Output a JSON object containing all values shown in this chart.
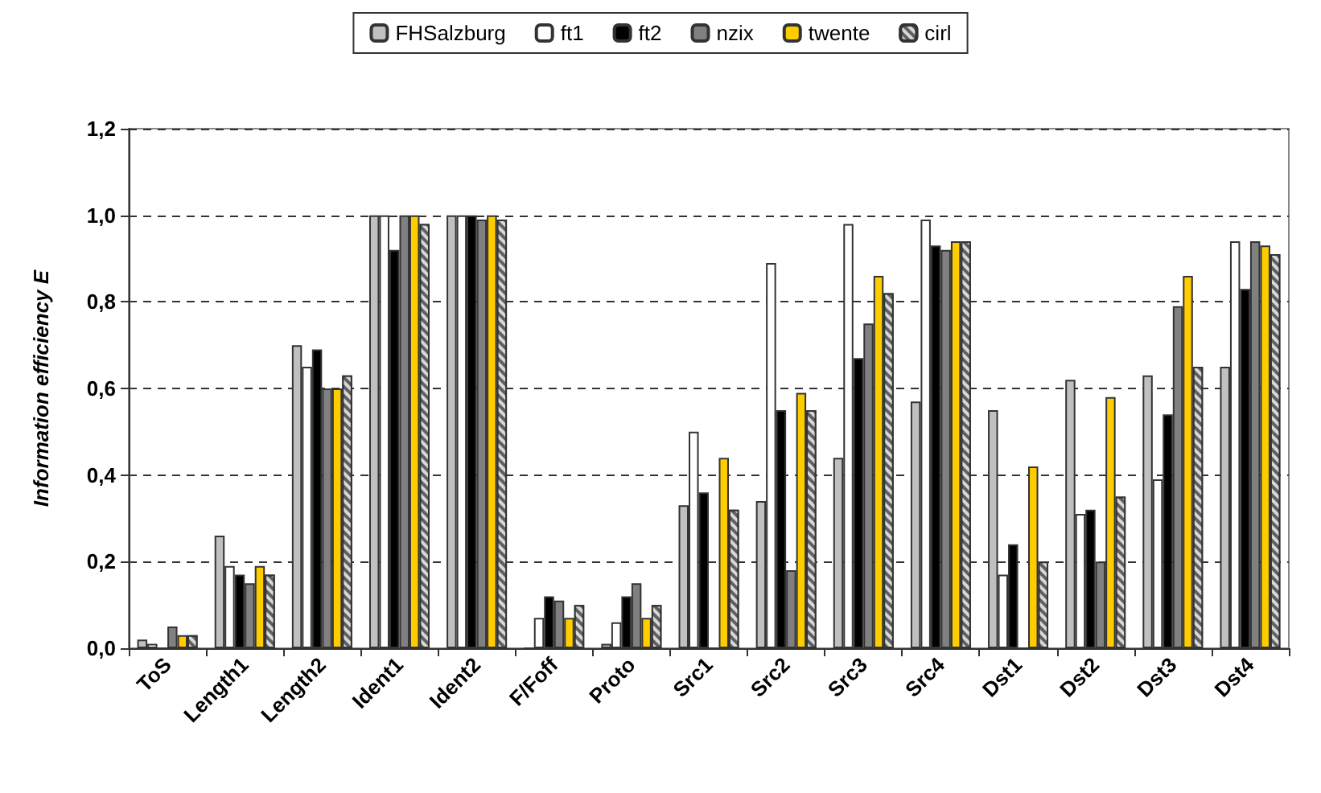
{
  "chart_data": {
    "type": "bar",
    "ylabel": "Information efficiency E",
    "categories": [
      "ToS",
      "Length1",
      "Length2",
      "Ident1",
      "Ident2",
      "F/Foff",
      "Proto",
      "Src1",
      "Src2",
      "Src3",
      "Src4",
      "Dst1",
      "Dst2",
      "Dst3",
      "Dst4"
    ],
    "series": [
      {
        "name": "FHSalzburg",
        "color": "#c0c0c0",
        "values": [
          0.02,
          0.26,
          0.7,
          1.0,
          1.0,
          0.0,
          0.01,
          0.33,
          0.34,
          0.44,
          0.57,
          0.55,
          0.62,
          0.63,
          0.65
        ]
      },
      {
        "name": "ft1",
        "color": "#ffffff",
        "values": [
          0.01,
          0.19,
          0.65,
          1.0,
          1.0,
          0.07,
          0.06,
          0.5,
          0.89,
          0.98,
          0.99,
          0.17,
          0.31,
          0.39,
          0.94
        ]
      },
      {
        "name": "ft2",
        "color": "#000000",
        "values": [
          0.0,
          0.17,
          0.69,
          0.92,
          1.0,
          0.12,
          0.12,
          0.36,
          0.55,
          0.67,
          0.93,
          0.24,
          0.32,
          0.54,
          0.83
        ]
      },
      {
        "name": "nzix",
        "color": "#808080",
        "values": [
          0.05,
          0.15,
          0.6,
          1.0,
          0.99,
          0.11,
          0.15,
          0.0,
          0.18,
          0.75,
          0.92,
          0.0,
          0.2,
          0.79,
          0.94
        ]
      },
      {
        "name": "twente",
        "color": "#ffcc00",
        "values": [
          0.03,
          0.19,
          0.6,
          1.0,
          1.0,
          0.07,
          0.07,
          0.44,
          0.59,
          0.86,
          0.94,
          0.42,
          0.58,
          0.86,
          0.93
        ]
      },
      {
        "name": "cirl",
        "color": "#606060",
        "values": [
          0.03,
          0.17,
          0.63,
          0.98,
          0.99,
          0.1,
          0.1,
          0.32,
          0.55,
          0.82,
          0.94,
          0.2,
          0.35,
          0.65,
          0.91
        ]
      }
    ],
    "ylim": [
      0,
      1.2
    ],
    "yticks": [
      {
        "value": 0,
        "label": "0,0"
      },
      {
        "value": 0.2,
        "label": "0,2"
      },
      {
        "value": 0.4,
        "label": "0,4"
      },
      {
        "value": 0.6,
        "label": "0,6"
      },
      {
        "value": 0.8,
        "label": "0,8"
      },
      {
        "value": 1.0,
        "label": "1,0"
      },
      {
        "value": 1.2,
        "label": "1,2"
      }
    ],
    "grid": "y",
    "legend": "top"
  }
}
